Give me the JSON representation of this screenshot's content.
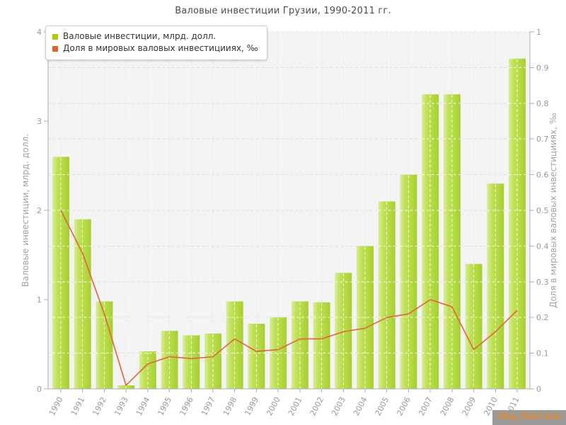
{
  "title": "Валовые инвестиции Грузии, 1990-2011 гг.",
  "legend": {
    "items": [
      {
        "label": "Валовые инвестиции, млрд. долл.",
        "color": "#a6ce0d"
      },
      {
        "label": "Доля в мировых валовых инвестицииях, ‰",
        "color": "#e2622d"
      }
    ]
  },
  "watermark": {
    "text": "http://be5.biz/",
    "bg": "#9b9b9b",
    "color": "#ff8000"
  },
  "colors": {
    "bar_light": "#d9ec9f",
    "bar_mid": "#c0e055",
    "bar_dark": "#a6cf2e",
    "line": "#e0653c",
    "plot_background": "#f4f4f4",
    "grid": "#e0e0e0",
    "axis": "#aeaeae",
    "tick_text": "#999999"
  },
  "chart_data": {
    "type": "bar",
    "title": "Валовые инвестиции Грузии, 1990-2011 гг.",
    "categories": [
      "1990",
      "1991",
      "1992",
      "1993",
      "1994",
      "1995",
      "1996",
      "1997",
      "1998",
      "1999",
      "2000",
      "2001",
      "2002",
      "2003",
      "2004",
      "2005",
      "2006",
      "2007",
      "2008",
      "2009",
      "2010",
      "2011"
    ],
    "series": [
      {
        "name": "Валовые инвестиции, млрд. долл.",
        "type": "bar",
        "axis": "left",
        "color": "#bcdc4e",
        "values": [
          2.6,
          1.9,
          0.98,
          0.04,
          0.42,
          0.65,
          0.6,
          0.62,
          0.98,
          0.73,
          0.8,
          0.98,
          0.97,
          1.3,
          1.6,
          2.1,
          2.4,
          3.3,
          3.3,
          1.4,
          2.3,
          3.7
        ]
      },
      {
        "name": "Доля в мировых валовых инвестицииях, ‰",
        "type": "line",
        "axis": "right",
        "color": "#e0653c",
        "values": [
          0.5,
          0.38,
          0.21,
          0.01,
          0.07,
          0.09,
          0.085,
          0.09,
          0.14,
          0.105,
          0.11,
          0.14,
          0.14,
          0.16,
          0.17,
          0.2,
          0.21,
          0.25,
          0.23,
          0.11,
          0.16,
          0.22
        ]
      }
    ],
    "left_axis": {
      "label": "Валовые инвестиции, млрд. долл.",
      "min": 0,
      "max": 4,
      "ticks": [
        0,
        1,
        2,
        3,
        4
      ]
    },
    "right_axis": {
      "label": "Доля в мировых валовых инвестицииях, ‰",
      "min": 0,
      "max": 1,
      "ticks": [
        0,
        0.1,
        0.2,
        0.3,
        0.4,
        0.5,
        0.6,
        0.7,
        0.8,
        0.9,
        1
      ],
      "tick_labels": [
        "0",
        "0.1",
        "0.2",
        "0.3",
        "0.4",
        "0.5",
        "0.6",
        "0.7",
        "0.8",
        "0.9",
        "1"
      ]
    },
    "grid": true,
    "legend_position": "top-left"
  }
}
